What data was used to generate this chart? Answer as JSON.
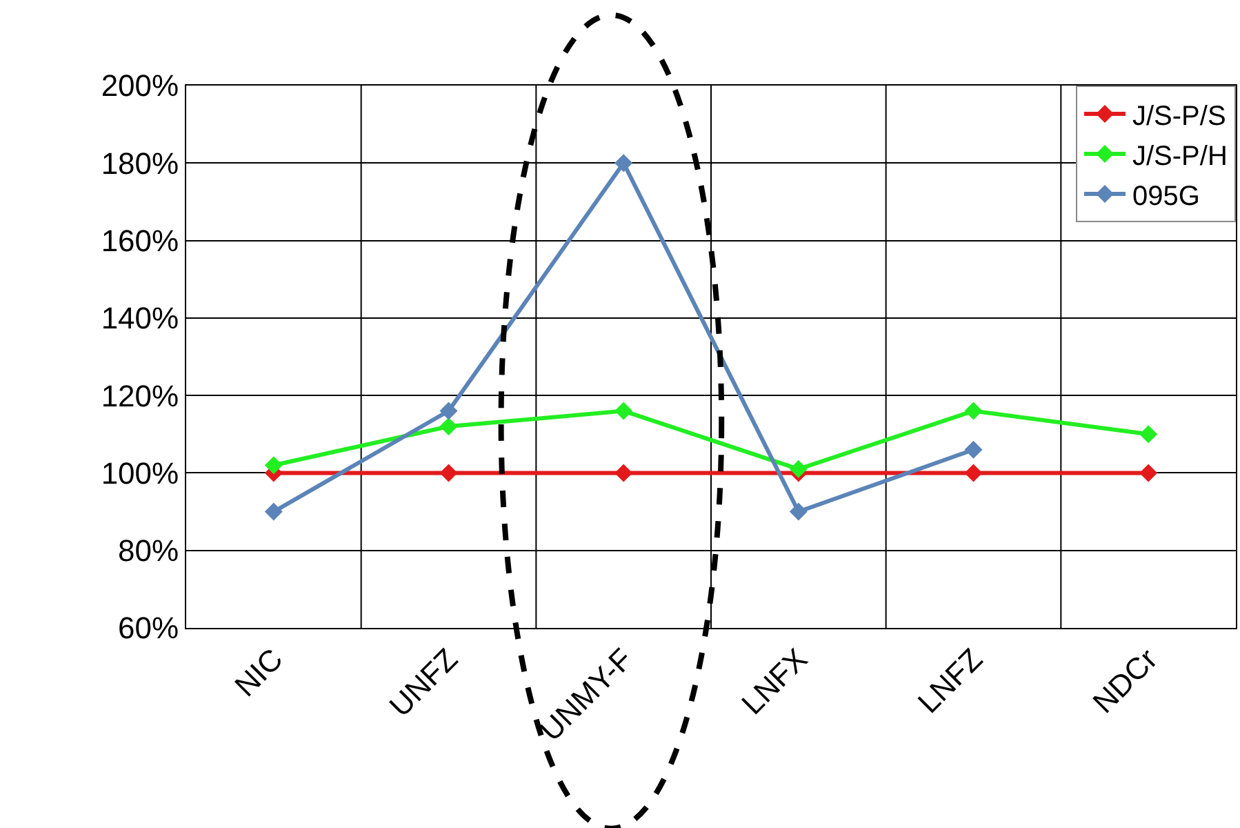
{
  "chart_data": {
    "type": "line",
    "categories": [
      "NIC",
      "UNFZ",
      "UNMY-F",
      "LNFX",
      "LNFZ",
      "NDCr"
    ],
    "series": [
      {
        "name": "J/S-P/S",
        "color": "#e31a1c",
        "values": [
          100,
          100,
          100,
          100,
          100,
          100
        ]
      },
      {
        "name": "J/S-P/H",
        "color": "#22ee22",
        "values": [
          102,
          112,
          116,
          101,
          116,
          110
        ]
      },
      {
        "name": "095G",
        "color": "#5b84b8",
        "values": [
          90,
          116,
          180,
          90,
          106,
          null
        ]
      }
    ],
    "ylim": [
      60,
      200
    ],
    "yticks": [
      {
        "value": 60,
        "label": "60%"
      },
      {
        "value": 80,
        "label": "80%"
      },
      {
        "value": 100,
        "label": "100%"
      },
      {
        "value": 120,
        "label": "120%"
      },
      {
        "value": 140,
        "label": "140%"
      },
      {
        "value": 160,
        "label": "160%"
      },
      {
        "value": 180,
        "label": "180%"
      },
      {
        "value": 200,
        "label": "200%"
      }
    ],
    "grid": true,
    "legend": "top right",
    "marker": "diamond",
    "line_style": "solid"
  }
}
